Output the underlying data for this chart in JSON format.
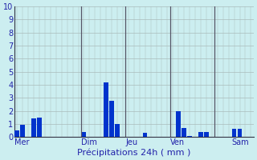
{
  "xlabel": "Précipitations 24h ( mm )",
  "background_color": "#cceef0",
  "bar_color": "#0033cc",
  "ylim": [
    0,
    10
  ],
  "yticks": [
    0,
    1,
    2,
    3,
    4,
    5,
    6,
    7,
    8,
    9,
    10
  ],
  "grid_color": "#aabbbb",
  "separator_color": "#555566",
  "day_labels": [
    "Mer",
    "Dim",
    "Jeu",
    "Ven",
    "Sam"
  ],
  "label_color": "#2222aa",
  "values": [
    0.5,
    0.9,
    0.0,
    1.4,
    1.5,
    0.0,
    0.0,
    0.0,
    0.0,
    0.0,
    0.0,
    0.0,
    0.4,
    0.0,
    0.0,
    0.0,
    4.2,
    2.8,
    1.0,
    0.0,
    0.0,
    0.0,
    0.0,
    0.3,
    0.0,
    0.0,
    0.0,
    0.0,
    0.0,
    2.0,
    0.7,
    0.1,
    0.0,
    0.4,
    0.4,
    0.0,
    0.0,
    0.0,
    0.0,
    0.6,
    0.6,
    0.0,
    0.0
  ],
  "separator_indices": [
    12,
    20,
    28,
    36
  ],
  "label_indices": [
    0,
    12,
    20,
    28,
    39
  ]
}
